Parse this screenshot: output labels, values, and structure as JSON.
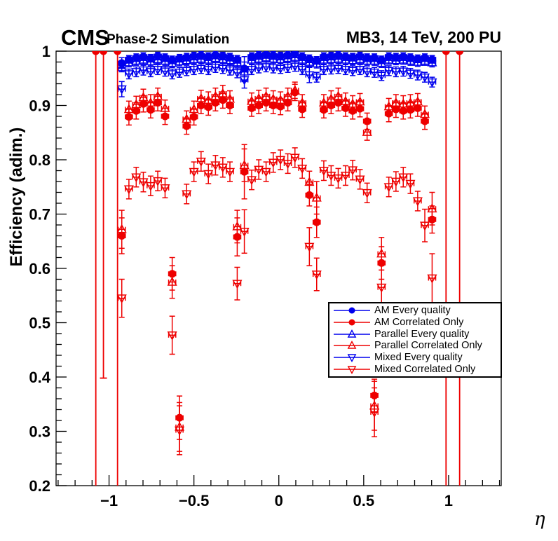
{
  "header": {
    "experiment": "CMS",
    "subtitle": "Phase-2 Simulation",
    "right_title": "MB3, 14 TeV, 200 PU"
  },
  "axes": {
    "x_label": "η",
    "y_label": "Efficiency (adim.)"
  },
  "chart_data": {
    "type": "scatter",
    "title": "MB3, 14 TeV, 200 PU",
    "xlabel": "η",
    "ylabel": "Efficiency (adim.)",
    "xlim": [
      -1.312,
      1.31
    ],
    "ylim": [
      0.2,
      1.0
    ],
    "grid": false,
    "legend_position": "bottom-right-inside",
    "x_ticks": {
      "values": [
        -1,
        -0.5,
        0,
        0.5,
        1
      ],
      "labels": [
        "−1",
        "−0.5",
        "0",
        "0.5",
        "1"
      ],
      "minor_step": 0.1
    },
    "y_ticks": {
      "values": [
        1,
        0.9,
        0.8,
        0.7,
        0.6,
        0.5,
        0.4,
        0.3,
        0.2
      ],
      "labels": [
        "1",
        "0.9",
        "0.8",
        "0.7",
        "0.6",
        "0.5",
        "0.4",
        "0.3",
        "0.2"
      ],
      "minor_step": 0.02
    },
    "colors": {
      "blue": "#0000ee",
      "red": "#ee0000"
    },
    "x": [
      -0.925,
      -0.883,
      -0.84,
      -0.798,
      -0.755,
      -0.713,
      -0.67,
      -0.628,
      -0.585,
      -0.543,
      -0.5,
      -0.458,
      -0.415,
      -0.373,
      -0.33,
      -0.288,
      -0.245,
      -0.203,
      -0.16,
      -0.118,
      -0.075,
      -0.033,
      0.01,
      0.053,
      0.095,
      0.138,
      0.18,
      0.223,
      0.265,
      0.308,
      0.35,
      0.393,
      0.435,
      0.478,
      0.52,
      0.563,
      0.605,
      0.648,
      0.69,
      0.733,
      0.775,
      0.818,
      0.86,
      0.903
    ],
    "x_half_width": 0.021,
    "series": [
      {
        "label": "AM Every quality",
        "color": "blue",
        "marker": "filled-circle",
        "ey_default": 0.007,
        "y": [
          0.978,
          0.985,
          0.988,
          0.99,
          0.987,
          0.991,
          0.988,
          0.984,
          0.987,
          0.989,
          0.991,
          0.992,
          0.99,
          0.993,
          0.991,
          0.989,
          0.985,
          0.968,
          0.99,
          0.992,
          0.994,
          0.992,
          0.991,
          0.993,
          0.995,
          0.99,
          0.986,
          0.983,
          0.99,
          0.991,
          0.992,
          0.99,
          0.989,
          0.991,
          0.988,
          0.988,
          0.984,
          0.99,
          0.989,
          0.99,
          0.988,
          0.986,
          0.988,
          0.985
        ],
        "ey_overrides": {
          "0": 0.01,
          "17": 0.022
        }
      },
      {
        "label": "AM Correlated Only",
        "color": "red",
        "marker": "filled-circle",
        "ey_default": 0.015,
        "y": [
          0.66,
          0.879,
          0.89,
          0.903,
          0.892,
          0.905,
          0.88,
          0.59,
          0.325,
          0.862,
          0.879,
          0.9,
          0.897,
          0.905,
          0.91,
          0.9,
          0.658,
          0.778,
          0.895,
          0.9,
          0.905,
          0.9,
          0.898,
          0.905,
          0.924,
          0.893,
          0.735,
          0.685,
          0.892,
          0.9,
          0.905,
          0.895,
          0.89,
          0.894,
          0.871,
          0.366,
          0.61,
          0.885,
          0.893,
          0.89,
          0.892,
          0.895,
          0.871,
          0.69
        ],
        "ey_overrides": {
          "0": 0.033,
          "7": 0.03,
          "8": 0.04,
          "16": 0.035,
          "17": 0.05,
          "26": 0.02,
          "27": 0.028,
          "35": 0.03,
          "36": 0.03,
          "43": 0.025
        },
        "tall_error_points": [
          {
            "x": -1.078,
            "y": 1.0,
            "ylow": 0.185,
            "cap": false
          },
          {
            "x": -1.033,
            "y": 1.0,
            "ylow": 0.398,
            "cap": true
          },
          {
            "x": -0.95,
            "y": 1.0,
            "ylow": 0.185,
            "cap": false
          },
          {
            "x": 0.985,
            "y": 1.0,
            "ylow": 0.185,
            "cap": false
          },
          {
            "x": 1.065,
            "y": 1.0,
            "ylow": 0.185,
            "cap": false
          }
        ]
      },
      {
        "label": "Parallel Every quality",
        "color": "blue",
        "marker": "open-triangle-up",
        "ey_default": 0.008,
        "y": [
          0.97,
          0.979,
          0.982,
          0.984,
          0.981,
          0.985,
          0.982,
          0.978,
          0.981,
          0.983,
          0.985,
          0.986,
          0.984,
          0.987,
          0.985,
          0.983,
          0.979,
          0.962,
          0.984,
          0.986,
          0.988,
          0.986,
          0.985,
          0.987,
          0.989,
          0.984,
          0.98,
          0.977,
          0.984,
          0.985,
          0.986,
          0.984,
          0.983,
          0.985,
          0.982,
          0.982,
          0.978,
          0.984,
          0.983,
          0.984,
          0.982,
          0.98,
          0.982,
          0.979
        ],
        "ey_overrides": {
          "17": 0.018
        }
      },
      {
        "label": "Parallel Correlated Only",
        "color": "red",
        "marker": "open-triangle-up",
        "ey_default": 0.015,
        "y": [
          0.672,
          0.893,
          0.902,
          0.915,
          0.905,
          0.917,
          0.895,
          0.575,
          0.308,
          0.875,
          0.893,
          0.913,
          0.91,
          0.917,
          0.922,
          0.912,
          0.677,
          0.79,
          0.908,
          0.913,
          0.917,
          0.912,
          0.91,
          0.917,
          0.928,
          0.905,
          0.759,
          0.73,
          0.905,
          0.912,
          0.917,
          0.908,
          0.903,
          0.907,
          0.851,
          0.347,
          0.627,
          0.898,
          0.905,
          0.903,
          0.905,
          0.907,
          0.884,
          0.71
        ],
        "ey_overrides": {
          "0": 0.035,
          "7": 0.03,
          "8": 0.045,
          "16": 0.03,
          "17": 0.03,
          "26": 0.02,
          "27": 0.03,
          "35": 0.045,
          "36": 0.03,
          "43": 0.03
        }
      },
      {
        "label": "Mixed Every quality",
        "color": "blue",
        "marker": "open-triangle-down",
        "ey_default": 0.009,
        "y": [
          0.93,
          0.958,
          0.962,
          0.965,
          0.962,
          0.966,
          0.963,
          0.958,
          0.961,
          0.964,
          0.966,
          0.968,
          0.966,
          0.97,
          0.968,
          0.965,
          0.96,
          0.947,
          0.966,
          0.969,
          0.971,
          0.969,
          0.968,
          0.97,
          0.972,
          0.966,
          0.956,
          0.952,
          0.966,
          0.967,
          0.968,
          0.966,
          0.964,
          0.966,
          0.962,
          0.961,
          0.955,
          0.964,
          0.962,
          0.963,
          0.959,
          0.956,
          0.952,
          0.943
        ],
        "ey_overrides": {
          "0": 0.014,
          "17": 0.015,
          "26": 0.014
        }
      },
      {
        "label": "Mixed Correlated Only",
        "color": "red",
        "marker": "open-triangle-down",
        "ey_default": 0.018,
        "y": [
          0.545,
          0.746,
          0.768,
          0.759,
          0.752,
          0.761,
          0.748,
          0.477,
          0.302,
          0.737,
          0.778,
          0.797,
          0.774,
          0.79,
          0.786,
          0.778,
          0.572,
          0.668,
          0.763,
          0.782,
          0.778,
          0.795,
          0.8,
          0.793,
          0.804,
          0.784,
          0.64,
          0.589,
          0.78,
          0.771,
          0.766,
          0.771,
          0.781,
          0.764,
          0.739,
          0.335,
          0.565,
          0.75,
          0.76,
          0.768,
          0.756,
          0.724,
          0.679,
          0.582
        ],
        "ey_overrides": {
          "0": 0.035,
          "7": 0.035,
          "8": 0.045,
          "16": 0.03,
          "17": 0.04,
          "26": 0.035,
          "27": 0.03,
          "35": 0.045,
          "36": 0.04,
          "42": 0.03,
          "43": 0.045
        }
      }
    ]
  },
  "legend": {
    "entries": [
      {
        "label": "AM Every quality"
      },
      {
        "label": "AM Correlated Only"
      },
      {
        "label": "Parallel Every quality"
      },
      {
        "label": "Parallel Correlated Only"
      },
      {
        "label": "Mixed Every quality"
      },
      {
        "label": "Mixed Correlated Only"
      }
    ]
  }
}
